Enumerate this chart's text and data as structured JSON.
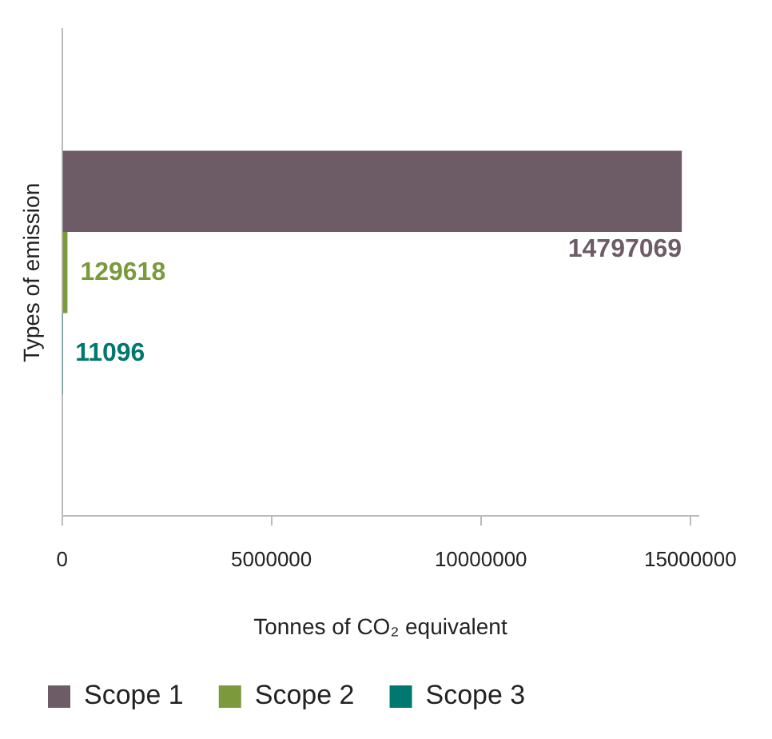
{
  "chart_data": {
    "type": "bar",
    "orientation": "horizontal",
    "xlabel": "Tonnes of CO₂ equivalent",
    "ylabel": "Types of emission",
    "categories": [
      null
    ],
    "series": [
      {
        "name": "Scope 1",
        "color": "#6d5c66",
        "values": [
          14797069
        ]
      },
      {
        "name": "Scope 2",
        "color": "#7a9a3c",
        "values": [
          129618
        ]
      },
      {
        "name": "Scope 3",
        "color": "#00786f",
        "values": [
          11096
        ]
      }
    ],
    "xlim": [
      0,
      15200000
    ],
    "xticks": [
      0,
      5000000,
      10000000,
      15000000
    ],
    "grid": false,
    "legend": "bottom",
    "data_labels": true
  }
}
